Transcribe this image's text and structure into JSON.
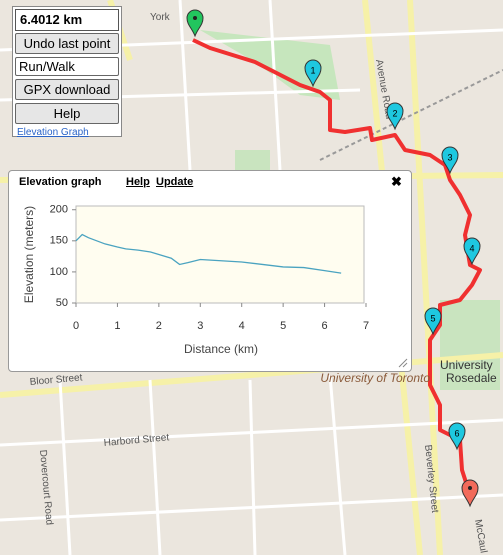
{
  "panel": {
    "distance": "6.4012 km",
    "undo": "Undo last point",
    "mode": "Run/Walk",
    "gpx": "GPX download",
    "help": "Help",
    "elevation_link": "Elevation Graph"
  },
  "map": {
    "labels": [
      "York",
      "Avenue Road",
      "Harbord Street",
      "Dovercourt Road",
      "Beverley Street",
      "University of Toronto",
      "University",
      "Rosedale",
      "Bloor Street",
      "McCaul"
    ],
    "markers": [
      "1",
      "2",
      "3",
      "4",
      "5",
      "6"
    ]
  },
  "popup": {
    "title": "Elevation graph",
    "help": "Help",
    "update": "Update",
    "close": "✖"
  },
  "chart_data": {
    "type": "line",
    "x_label": "Distance (km)",
    "y_label": "Elevation (meters)",
    "x": [
      0,
      0.15,
      0.3,
      0.5,
      0.7,
      1.0,
      1.2,
      1.5,
      1.8,
      2.0,
      2.3,
      2.5,
      2.7,
      3.0,
      3.5,
      4.0,
      4.5,
      5.0,
      5.5,
      6.0,
      6.4
    ],
    "series": [
      {
        "name": "Elevation",
        "color": "#4aa3c0",
        "values": [
          150,
          160,
          155,
          150,
          145,
          140,
          137,
          135,
          132,
          128,
          122,
          112,
          115,
          120,
          118,
          116,
          112,
          108,
          107,
          102,
          98
        ]
      }
    ],
    "xlim": [
      0,
      7
    ],
    "xticks": [
      0,
      1,
      2,
      3,
      4,
      5,
      6,
      7
    ],
    "ylim": [
      50,
      206
    ],
    "yticks": [
      50,
      100,
      150,
      200
    ]
  }
}
